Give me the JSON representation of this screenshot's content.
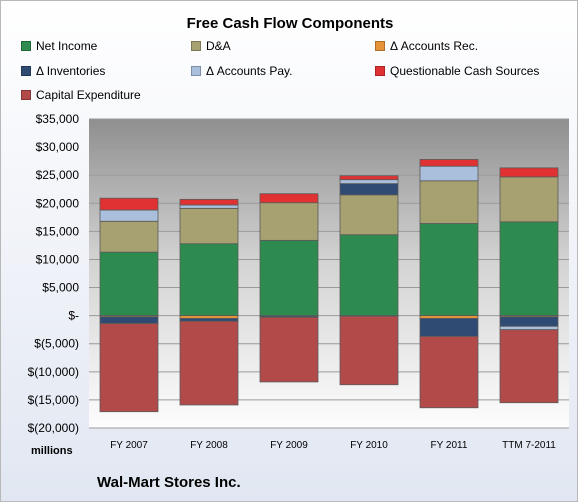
{
  "chart_data": {
    "type": "bar",
    "stacked": true,
    "title": "Free Cash Flow Components",
    "unit_label": "millions",
    "company": "Wal-Mart Stores Inc.",
    "categories": [
      "FY 2007",
      "FY 2008",
      "FY 2009",
      "FY 2010",
      "FY 2011",
      "TTM 7-2011"
    ],
    "ylim": [
      -20000,
      35000
    ],
    "y_ticks": [
      35000,
      30000,
      25000,
      20000,
      15000,
      10000,
      5000,
      0,
      -5000,
      -10000,
      -15000,
      -20000
    ],
    "y_tick_labels": [
      "$35,000",
      "$30,000",
      "$25,000",
      "$20,000",
      "$15,000",
      "$10,000",
      "$5,000",
      "$-",
      "$(5,000)",
      "$(10,000)",
      "$(15,000)",
      "$(20,000)"
    ],
    "grid": true,
    "legend_position": "top",
    "series": [
      {
        "name": "Net Income",
        "color": "#2e8b4f",
        "values": [
          11300,
          12800,
          13400,
          14400,
          16400,
          16700
        ]
      },
      {
        "name": "D&A",
        "color": "#a7a070",
        "values": [
          5500,
          6300,
          6700,
          7100,
          7600,
          8000
        ]
      },
      {
        "name": "Δ Accounts Rec.",
        "color": "#e59437",
        "values": [
          -200,
          -500,
          -100,
          -100,
          -500,
          -200
        ]
      },
      {
        "name": "Δ Inventories",
        "color": "#2f4a73",
        "values": [
          -1200,
          -500,
          -200,
          2000,
          -3200,
          -1700
        ]
      },
      {
        "name": "Δ Accounts Pay.",
        "color": "#a9bfdc",
        "values": [
          2000,
          600,
          0,
          700,
          2600,
          -600
        ]
      },
      {
        "name": "Questionable Cash Sources",
        "color": "#e03232",
        "values": [
          2100,
          1000,
          1600,
          700,
          1200,
          1600
        ]
      },
      {
        "name": "Capital Expenditure",
        "color": "#b24a4a",
        "values": [
          -15700,
          -14900,
          -11500,
          -12200,
          -12700,
          -13000
        ]
      }
    ]
  }
}
